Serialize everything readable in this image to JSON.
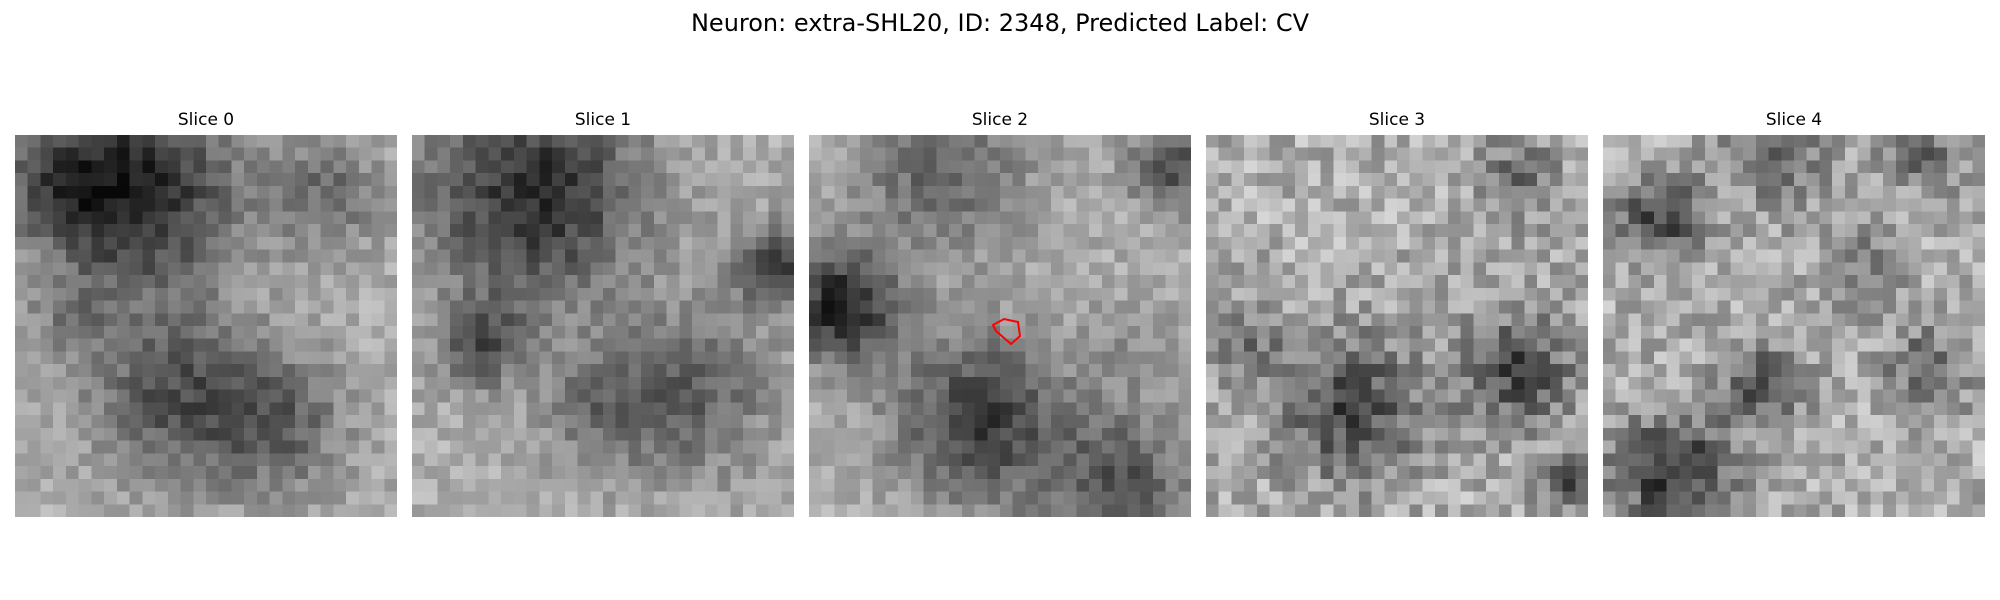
{
  "figure": {
    "title": "Neuron: extra-SHL20, ID: 2348, Predicted Label: CV"
  },
  "panels": [
    {
      "title": "Slice 0"
    },
    {
      "title": "Slice 1"
    },
    {
      "title": "Slice 2",
      "has_roi": true
    },
    {
      "title": "Slice 3"
    },
    {
      "title": "Slice 4"
    }
  ],
  "colors": {
    "roi_outline": "#ff0000",
    "colormap": "gray"
  }
}
